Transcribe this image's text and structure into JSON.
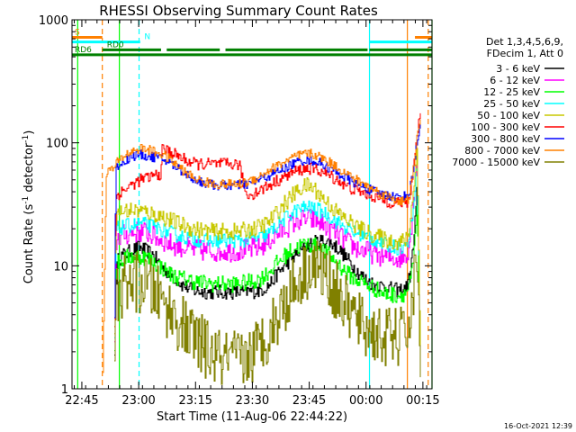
{
  "chart_data": {
    "type": "line",
    "title": "RHESSI Observing Summary Count Rates",
    "xlabel": "Start Time (11-Aug-06 22:44:22)",
    "ylabel_main": "Count Rate (s",
    "ylabel_sup1": "-1",
    "ylabel_mid": " detector",
    "ylabel_sup2": "-1",
    "ylabel_end": ")",
    "footer": "16-Oct-2021 12:39",
    "yscale": "log",
    "ylim": [
      1,
      1000
    ],
    "xlim_minutes": [
      -2,
      93
    ],
    "x_unit": "minutes after 22:44:22",
    "x_ticks": [
      {
        "label": "22:45",
        "x": 0.6
      },
      {
        "label": "23:00",
        "x": 15.6
      },
      {
        "label": "23:15",
        "x": 30.6
      },
      {
        "label": "23:30",
        "x": 45.6
      },
      {
        "label": "23:45",
        "x": 60.6
      },
      {
        "label": "00:00",
        "x": 75.6
      },
      {
        "label": "00:15",
        "x": 90.6
      }
    ],
    "y_ticks": [
      {
        "label": "1",
        "y": 1
      },
      {
        "label": "10",
        "y": 10
      },
      {
        "label": "100",
        "y": 100
      },
      {
        "label": "1000",
        "y": 1000
      }
    ],
    "legend": {
      "header": [
        "Det 1,3,4,5,6,9,",
        "FDecim 1, Att 0"
      ],
      "placement": "right"
    },
    "series": [
      {
        "name": "3 - 6 keV",
        "color": "#000000",
        "x": [
          9,
          9.5,
          10,
          11,
          12,
          13,
          14,
          15,
          16,
          17,
          18,
          19,
          20,
          21,
          22,
          23,
          24,
          25,
          26,
          27,
          28,
          29,
          30,
          32,
          34,
          36,
          38,
          40,
          42,
          44,
          46,
          48,
          50,
          52,
          54,
          56,
          58,
          60,
          62,
          64,
          66,
          68,
          70,
          72,
          74,
          76,
          78,
          80,
          82,
          84,
          86,
          87,
          88,
          89,
          90
        ],
        "y": [
          1,
          7,
          11,
          12,
          12.5,
          13,
          13.5,
          14,
          14,
          13.5,
          13,
          12.5,
          11.5,
          10.5,
          9.5,
          9,
          8.5,
          8,
          7.5,
          7,
          6.8,
          6.5,
          6.3,
          6.2,
          6.1,
          6.1,
          6.1,
          6.1,
          6.1,
          6.2,
          6.2,
          6.4,
          7,
          8.5,
          10,
          11.5,
          13,
          14.5,
          15.5,
          16,
          15.5,
          14,
          12,
          10,
          8.5,
          7.5,
          7,
          6.8,
          6.5,
          6.3,
          6.5,
          8,
          14,
          40,
          1
        ]
      },
      {
        "name": "6 - 12 keV",
        "color": "#ff00ff",
        "x": [
          9,
          9.5,
          10,
          12,
          14,
          16,
          18,
          20,
          22,
          24,
          26,
          28,
          30,
          32,
          34,
          36,
          38,
          40,
          42,
          44,
          46,
          48,
          50,
          52,
          54,
          56,
          58,
          60,
          62,
          64,
          66,
          68,
          70,
          72,
          74,
          76,
          78,
          80,
          82,
          84,
          86,
          87,
          88,
          89,
          90
        ],
        "y": [
          1,
          15,
          17,
          18,
          18.5,
          19,
          18.5,
          17,
          16,
          15,
          14.5,
          14,
          13.5,
          13.3,
          13.2,
          13.2,
          13.2,
          13.2,
          13.3,
          13.5,
          13.8,
          14.5,
          16,
          18,
          20,
          22,
          23.5,
          24,
          23.5,
          22,
          20,
          18,
          16,
          14.5,
          13.5,
          13,
          12.5,
          12,
          11.5,
          11.5,
          12,
          15,
          30,
          80,
          1
        ]
      },
      {
        "name": "12 - 25 keV",
        "color": "#00ff00",
        "x": [
          9,
          9.5,
          10,
          12,
          14,
          16,
          18,
          20,
          22,
          24,
          26,
          28,
          30,
          32,
          34,
          36,
          38,
          40,
          42,
          44,
          46,
          48,
          50,
          52,
          54,
          56,
          58,
          60,
          62,
          64,
          66,
          68,
          70,
          72,
          74,
          76,
          78,
          80,
          82,
          84,
          86,
          87,
          88,
          89,
          90
        ],
        "y": [
          1,
          9,
          10.5,
          11.5,
          12,
          12,
          11.5,
          10.5,
          9.5,
          8.5,
          8,
          7.8,
          7.5,
          7.3,
          7.2,
          7.1,
          7.1,
          7.1,
          7.2,
          7.3,
          7.5,
          8,
          9,
          10.5,
          12,
          13.5,
          14.5,
          15,
          14.5,
          13.5,
          12,
          10.5,
          9,
          8,
          7.5,
          7,
          6.5,
          6,
          5.8,
          5.8,
          6,
          7,
          10,
          30,
          1
        ]
      },
      {
        "name": "25 - 50 keV",
        "color": "#00ffff",
        "x": [
          9,
          9.5,
          10,
          12,
          14,
          16,
          18,
          20,
          22,
          24,
          26,
          28,
          30,
          32,
          34,
          36,
          38,
          40,
          42,
          44,
          46,
          48,
          50,
          52,
          54,
          56,
          58,
          60,
          62,
          64,
          66,
          68,
          70,
          72,
          74,
          76,
          78,
          80,
          82,
          84,
          86,
          87,
          88,
          89,
          90
        ],
        "y": [
          1,
          19,
          20,
          21,
          21.5,
          22,
          21.5,
          20.5,
          19.5,
          18.5,
          17.5,
          17,
          16.5,
          16.2,
          16,
          16,
          16,
          16,
          16,
          16.2,
          16.5,
          17,
          18.5,
          21,
          24,
          27,
          29,
          30,
          29,
          27.5,
          25,
          22.5,
          20.5,
          19,
          18,
          17,
          16,
          15,
          14.5,
          14,
          14.5,
          17,
          30,
          70,
          1
        ]
      },
      {
        "name": "50 - 100 keV",
        "color": "#c8c800",
        "x": [
          9,
          9.5,
          10,
          12,
          14,
          16,
          18,
          20,
          22,
          24,
          26,
          28,
          30,
          32,
          34,
          36,
          38,
          40,
          42,
          44,
          46,
          48,
          50,
          52,
          54,
          56,
          58,
          60,
          62,
          64,
          66,
          68,
          70,
          72,
          74,
          76,
          78,
          80,
          82,
          84,
          86,
          87,
          88,
          89,
          90
        ],
        "y": [
          1,
          24,
          27,
          28,
          28.5,
          28,
          27,
          26,
          25,
          23.5,
          22,
          21,
          20,
          19.5,
          19,
          19,
          19,
          19,
          19,
          19.5,
          20,
          21,
          23,
          27,
          32,
          37,
          42,
          45,
          42,
          36,
          31,
          27,
          24,
          22,
          20,
          18.5,
          17.5,
          16.5,
          16,
          15.5,
          16,
          20,
          40,
          90,
          1
        ]
      },
      {
        "name": "100 - 300 keV",
        "color": "#ff0000",
        "x": [
          9,
          9.5,
          10,
          12,
          14,
          16,
          18,
          20,
          21.5,
          21.6,
          22,
          24,
          26,
          28,
          30,
          32,
          34,
          36,
          38,
          40,
          42,
          44,
          46,
          48,
          50,
          52,
          54,
          56,
          58,
          60,
          62,
          64,
          66,
          68,
          70,
          72,
          74,
          76,
          78,
          80,
          82,
          84,
          86,
          87,
          88,
          89,
          90
        ],
        "y": [
          1,
          36,
          38,
          42,
          46,
          50,
          52,
          55,
          56,
          88,
          90,
          84,
          78,
          72,
          68,
          67,
          67,
          67,
          67,
          67,
          67,
          37,
          39,
          42,
          45,
          49,
          53,
          57,
          60,
          62,
          61,
          58,
          54,
          50,
          45,
          42,
          40,
          38,
          36,
          34,
          33,
          33,
          32,
          35,
          60,
          120,
          180
        ]
      },
      {
        "name": "300 - 800 keV",
        "color": "#0000ff",
        "x": [
          9,
          9.5,
          10,
          12,
          14,
          16,
          18,
          20,
          22,
          24,
          26,
          28,
          30,
          32,
          34,
          36,
          38,
          40,
          42,
          44,
          46,
          48,
          50,
          52,
          54,
          56,
          58,
          60,
          62,
          64,
          66,
          68,
          70,
          72,
          74,
          76,
          78,
          80,
          82,
          84,
          86,
          87,
          88,
          89,
          90
        ],
        "y": [
          1,
          60,
          65,
          72,
          78,
          80,
          78,
          76,
          73,
          68,
          62,
          56,
          51,
          48,
          46,
          45,
          45,
          45,
          45,
          46,
          48,
          51,
          54,
          58,
          62,
          67,
          71,
          73,
          71,
          67,
          62,
          57,
          52,
          48,
          45,
          42,
          40,
          38,
          37,
          36,
          37,
          40,
          60,
          100,
          150
        ]
      },
      {
        "name": "800 - 7000 keV",
        "color": "#ff8000",
        "x": [
          6,
          7,
          8,
          9,
          10,
          12,
          14,
          16,
          18,
          20,
          22,
          24,
          26,
          28,
          30,
          32,
          34,
          36,
          38,
          40,
          42,
          44,
          46,
          48,
          50,
          52,
          54,
          56,
          58,
          60,
          62,
          64,
          66,
          68,
          70,
          72,
          74,
          76,
          78,
          80,
          82,
          84,
          86,
          87,
          88,
          89,
          90
        ],
        "y": [
          1,
          58,
          60,
          62,
          70,
          80,
          86,
          90,
          88,
          84,
          80,
          72,
          64,
          57,
          52,
          49,
          47,
          46,
          46,
          46,
          46,
          48,
          51,
          55,
          60,
          65,
          70,
          75,
          79,
          82,
          80,
          75,
          69,
          63,
          57,
          52,
          48,
          44,
          41,
          38,
          36,
          34,
          33,
          36,
          60,
          110,
          160
        ]
      },
      {
        "name": "7000 - 15000 keV",
        "color": "#808000",
        "x": [
          9,
          9.5,
          10,
          12,
          14,
          16,
          18,
          20,
          22,
          24,
          26,
          28,
          30,
          32,
          34,
          36,
          38,
          40,
          42,
          44,
          46,
          48,
          50,
          52,
          54,
          56,
          58,
          60,
          62,
          64,
          66,
          68,
          70,
          72,
          74,
          76,
          78,
          80,
          82,
          84,
          86,
          87,
          88,
          89,
          90
        ],
        "y": [
          1,
          5,
          6,
          7,
          7.5,
          7.2,
          6.8,
          6,
          5,
          4.2,
          3.5,
          3,
          2.6,
          2.3,
          2,
          1.8,
          1.7,
          1.7,
          1.7,
          1.8,
          2,
          2.4,
          3,
          3.8,
          5,
          6.5,
          8,
          9.5,
          10,
          9,
          7.5,
          6,
          4.8,
          4,
          3.4,
          3,
          2.8,
          2.6,
          2.6,
          2.6,
          2.8,
          3.5,
          6,
          12,
          1
        ]
      }
    ],
    "flags": [
      {
        "name": "S",
        "color": "#ff8000",
        "y": 720,
        "segments": [
          [
            -2,
            6
          ],
          [
            88.5,
            93
          ]
        ],
        "markers": [
          6,
          88.5
        ],
        "label_x": -1.3
      },
      {
        "name": "N",
        "color": "#00ffff",
        "y": 660,
        "segments": [
          [
            -2,
            16
          ],
          [
            76.5,
            93
          ]
        ],
        "markers": [
          16,
          76.5
        ],
        "label_x": 17.1
      },
      {
        "name": "RD0",
        "color": "#008000",
        "y": 570,
        "segments": [
          [
            6,
            21.5
          ],
          [
            23,
            37
          ],
          [
            38.5,
            76
          ],
          [
            76.5,
            93
          ]
        ],
        "markers": [],
        "label_x": 7.2
      },
      {
        "name": "RD6",
        "color": "#008000",
        "y": 520,
        "segments": [
          [
            -2,
            93
          ]
        ],
        "markers": [],
        "label_x": -1.3
      }
    ],
    "verticals": [
      {
        "x": -0.5,
        "color": "#00ff00",
        "style": "solid"
      },
      {
        "x": 6,
        "color": "#ff8000",
        "style": "dashed"
      },
      {
        "x": 10.5,
        "color": "#00ff00",
        "style": "solid"
      },
      {
        "x": 15.7,
        "color": "#00ffff",
        "style": "dashed"
      },
      {
        "x": 76.5,
        "color": "#00ffff",
        "style": "solid"
      },
      {
        "x": 86.5,
        "color": "#ff8000",
        "style": "solid"
      },
      {
        "x": 92,
        "color": "#ff8000",
        "style": "dashed"
      },
      {
        "x": 93,
        "color": "#00ff00",
        "style": "solid"
      }
    ]
  }
}
